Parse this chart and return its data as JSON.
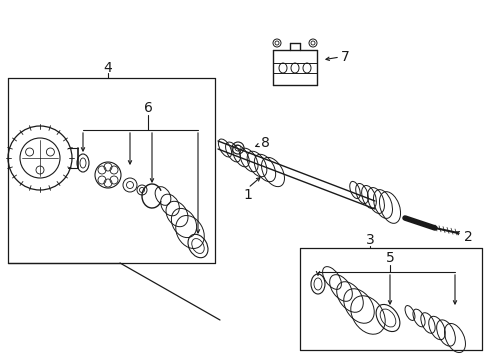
{
  "bg_color": "#ffffff",
  "line_color": "#1a1a1a",
  "fig_width": 4.89,
  "fig_height": 3.6,
  "dpi": 100,
  "label_fontsize": 10,
  "label_fontsize_sm": 9
}
